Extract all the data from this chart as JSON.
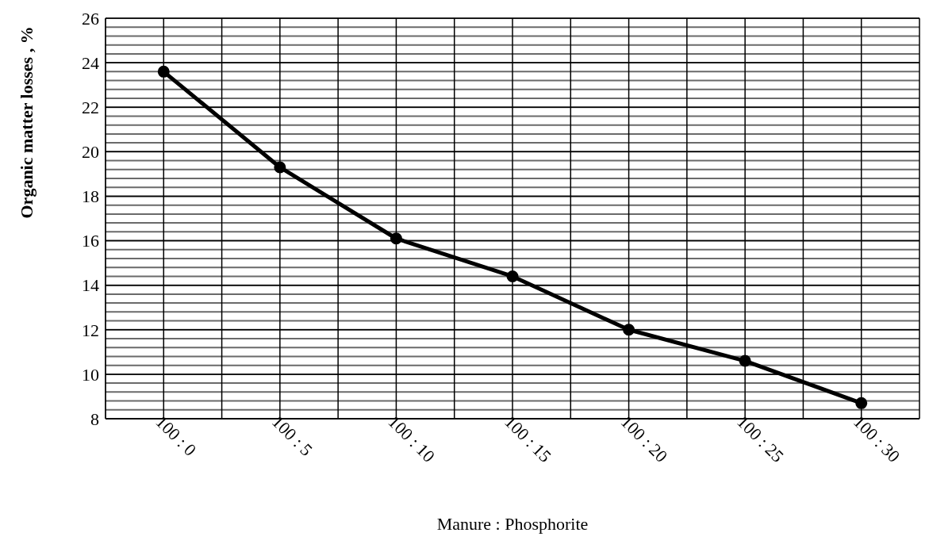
{
  "chart_data": {
    "type": "line",
    "xlabel": "Manure : Phosphorite",
    "ylabel": "Organic matter losses , %",
    "categories": [
      "100 : 0",
      "100 : 5",
      "100 : 10",
      "100 : 15",
      "100 : 20",
      "100 : 25",
      "100 : 30"
    ],
    "series": [
      {
        "color": "#000000",
        "values": [
          23.6,
          19.3,
          16.1,
          14.4,
          12.0,
          10.6,
          8.7
        ]
      }
    ],
    "ylim": [
      8,
      26
    ],
    "yticks": [
      8,
      10,
      12,
      14,
      16,
      18,
      20,
      22,
      24,
      26
    ],
    "grid": true,
    "marker": "circle",
    "line_style": "solid",
    "legend": false
  }
}
